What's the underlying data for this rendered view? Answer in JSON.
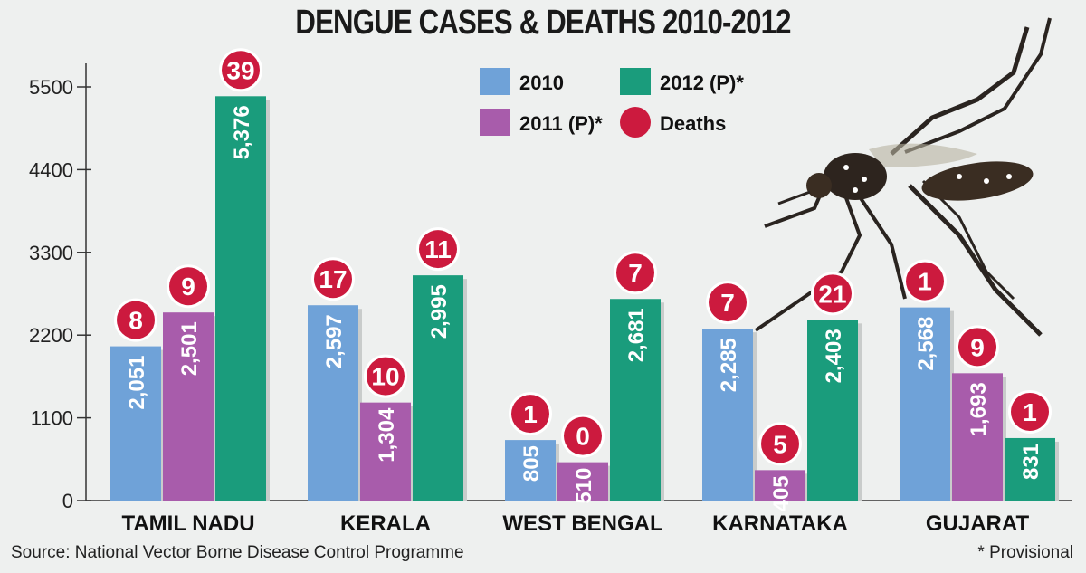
{
  "chart_data": {
    "type": "bar",
    "title": "DENGUE CASES & DEATHS 2010-2012",
    "categories": [
      "TAMIL NADU",
      "KERALA",
      "WEST BENGAL",
      "KARNATAKA",
      "GUJARAT"
    ],
    "series": [
      {
        "name": "2010",
        "color": "#6fa2d8",
        "values": [
          2051,
          2597,
          805,
          2285,
          2568
        ],
        "labels": [
          "2,051",
          "2,597",
          "805",
          "2,285",
          "2,568"
        ]
      },
      {
        "name": "2011 (P)*",
        "color": "#a85cab",
        "values": [
          2501,
          1304,
          510,
          405,
          1693
        ],
        "labels": [
          "2,501",
          "1,304",
          "510",
          "405",
          "1,693"
        ]
      },
      {
        "name": "2012 (P)*",
        "color": "#1a9c7c",
        "values": [
          5376,
          2995,
          2681,
          2403,
          831
        ],
        "labels": [
          "5,376",
          "2,995",
          "2,681",
          "2,403",
          "831"
        ]
      }
    ],
    "deaths": {
      "name": "Deaths",
      "color": "#cc1a3e",
      "values": [
        [
          8,
          9,
          39
        ],
        [
          17,
          10,
          11
        ],
        [
          1,
          0,
          7
        ],
        [
          7,
          5,
          21
        ],
        [
          1,
          9,
          1
        ]
      ]
    },
    "yticks": [
      0,
      1100,
      2200,
      3300,
      4400,
      5500
    ],
    "ylim": [
      0,
      5500
    ],
    "legend_position": "top-center"
  },
  "source": "Source: National Vector Borne Disease Control Programme",
  "footnote": "* Provisional"
}
